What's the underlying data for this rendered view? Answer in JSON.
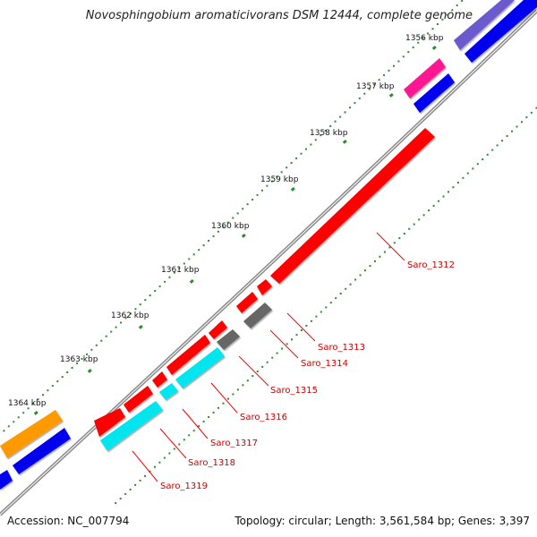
{
  "title": "Novosphingobium aromaticivorans DSM 12444, complete genome",
  "footer": {
    "accession": "Accession: NC_007794",
    "summary": "Topology: circular; Length: 3,561,584 bp; Genes: 3,397"
  },
  "ticks": [
    {
      "label": "1356 kbp",
      "kbp": 1356
    },
    {
      "label": "1357 kbp",
      "kbp": 1357
    },
    {
      "label": "1358 kbp",
      "kbp": 1358
    },
    {
      "label": "1359 kbp",
      "kbp": 1359
    },
    {
      "label": "1360 kbp",
      "kbp": 1360
    },
    {
      "label": "1361 kbp",
      "kbp": 1361
    },
    {
      "label": "1362 kbp",
      "kbp": 1362
    },
    {
      "label": "1363 kbp",
      "kbp": 1363
    },
    {
      "label": "1364 kbp",
      "kbp": 1364
    }
  ],
  "gene_labels": [
    {
      "label": "Saro_1312"
    },
    {
      "label": "Saro_1313"
    },
    {
      "label": "Saro_1314"
    },
    {
      "label": "Saro_1315"
    },
    {
      "label": "Saro_1316"
    },
    {
      "label": "Saro_1317"
    },
    {
      "label": "Saro_1318"
    },
    {
      "label": "Saro_1319"
    }
  ],
  "colors": {
    "backbone": "#8a8a8a",
    "tick_dot": "#2e8b2e",
    "gene_red": "#ff0000",
    "gene_blue": "#0000ee",
    "gene_cyan": "#00e5ee",
    "gene_gray": "#666666",
    "gene_orange": "#ff9900",
    "gene_magenta": "#ff1493",
    "gene_slate": "#6a5acd",
    "label_text": "#cc0000"
  }
}
